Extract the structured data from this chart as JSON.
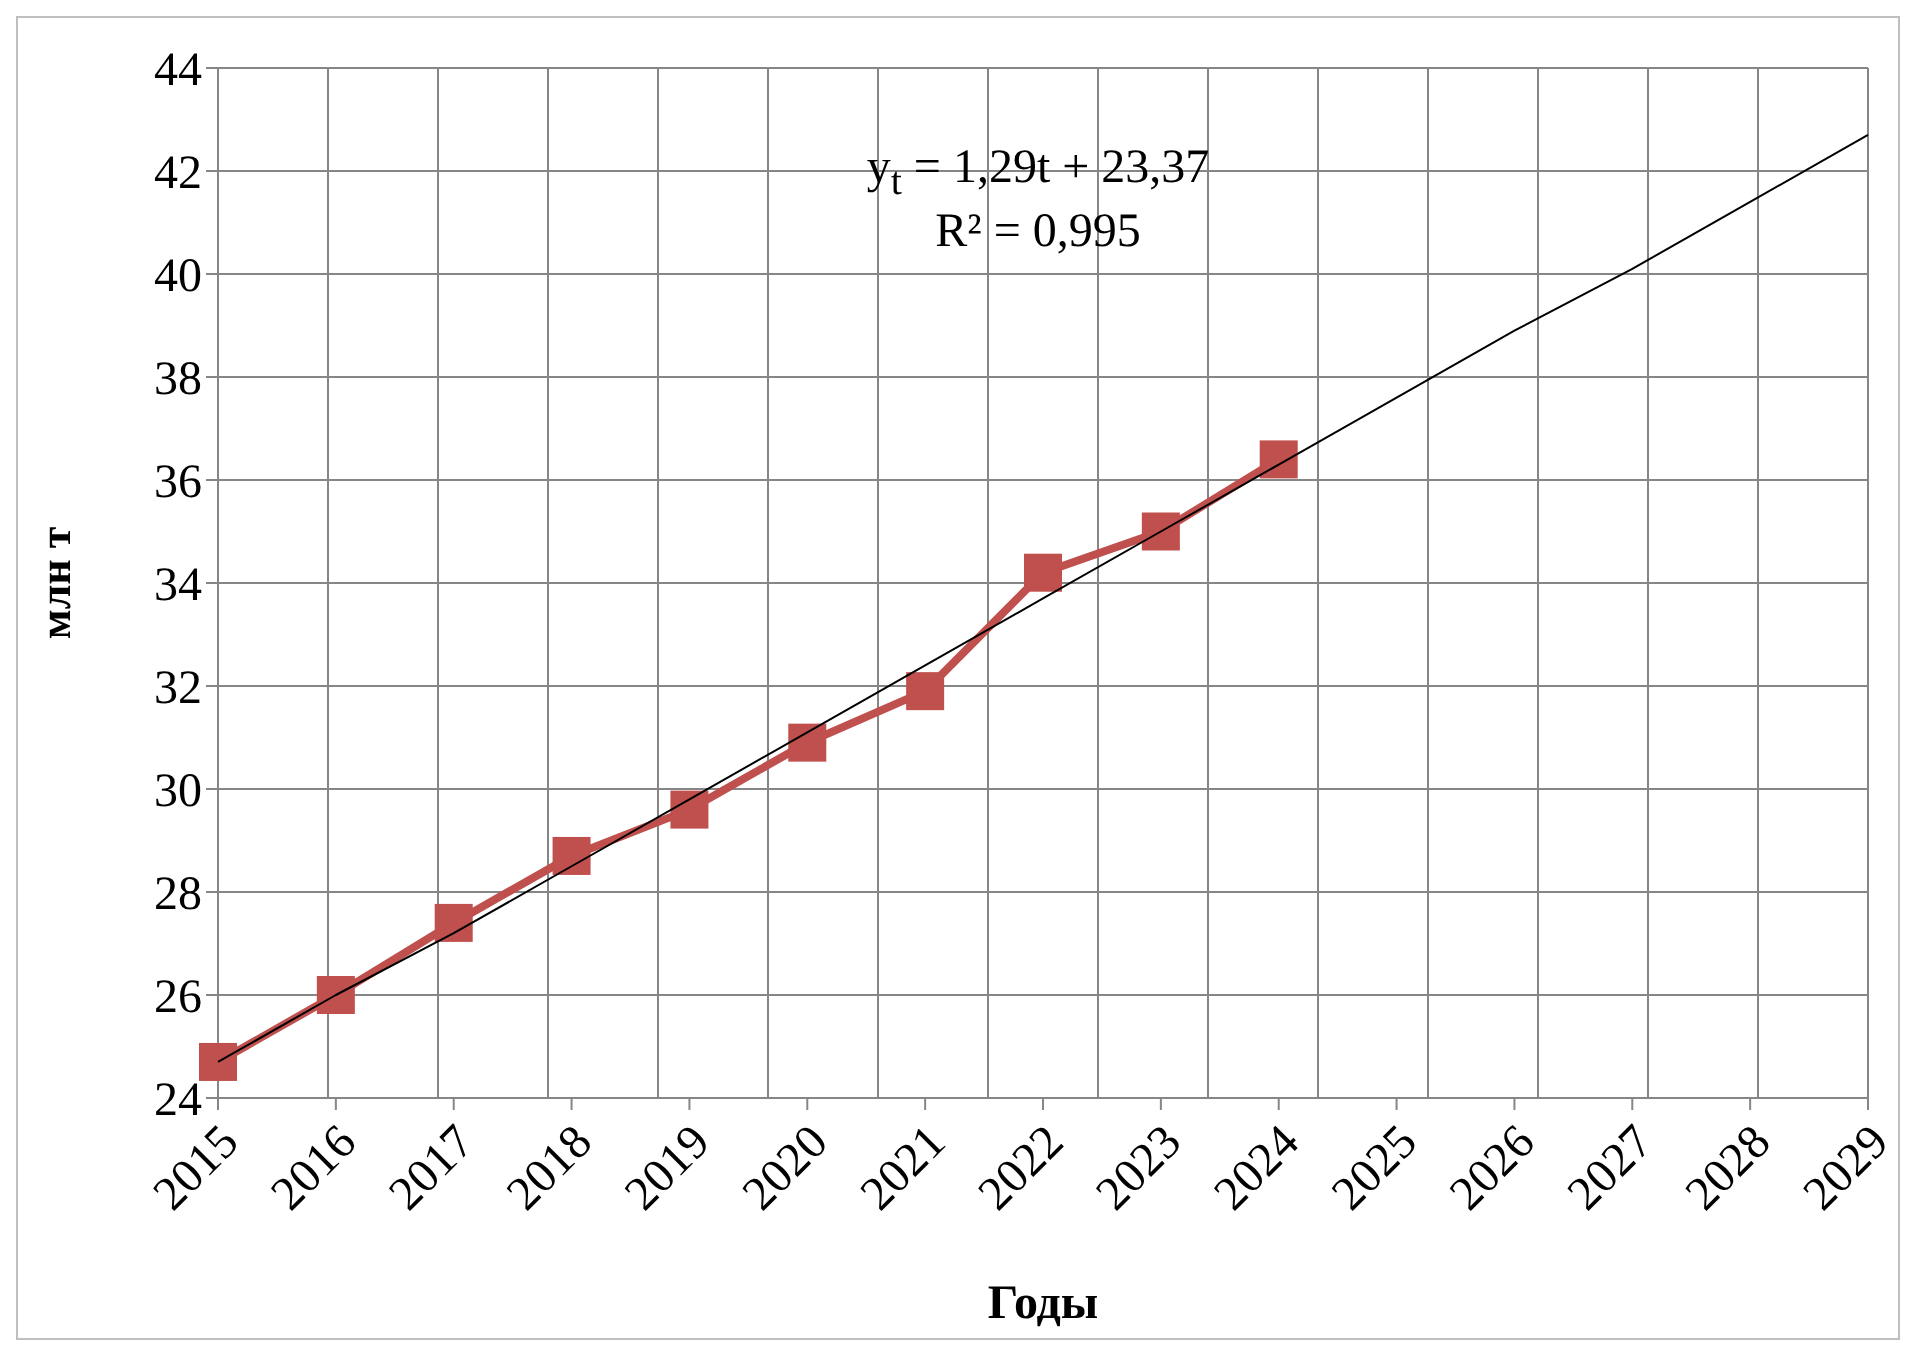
{
  "chart_data": {
    "type": "line",
    "xlabel": "Годы",
    "ylabel": "млн т",
    "categories": [
      "2015",
      "2016",
      "2017",
      "2018",
      "2019",
      "2020",
      "2021",
      "2022",
      "2023",
      "2024",
      "2025",
      "2026",
      "2027",
      "2028",
      "2029"
    ],
    "series": [
      {
        "color": "#c0504d",
        "marker": "square",
        "values": [
          24.7,
          26.0,
          27.4,
          28.7,
          29.6,
          30.9,
          31.9,
          34.2,
          35.0,
          36.4,
          null,
          null,
          null,
          null,
          null
        ]
      },
      {
        "type": "line",
        "color": "#000000",
        "marker": "none",
        "values": [
          24.7,
          26.0,
          27.2,
          28.5,
          29.8,
          31.1,
          32.4,
          33.7,
          35.0,
          36.3,
          37.6,
          38.9,
          40.1,
          41.4,
          42.7
        ]
      }
    ],
    "ylim": [
      24,
      44
    ],
    "yticks": [
      24,
      26,
      28,
      30,
      32,
      34,
      36,
      38,
      40,
      42,
      44
    ],
    "grid": true,
    "annotations": [
      "y$_{t}$ = 1,29t + 23,37",
      "R² = 0,995"
    ]
  }
}
